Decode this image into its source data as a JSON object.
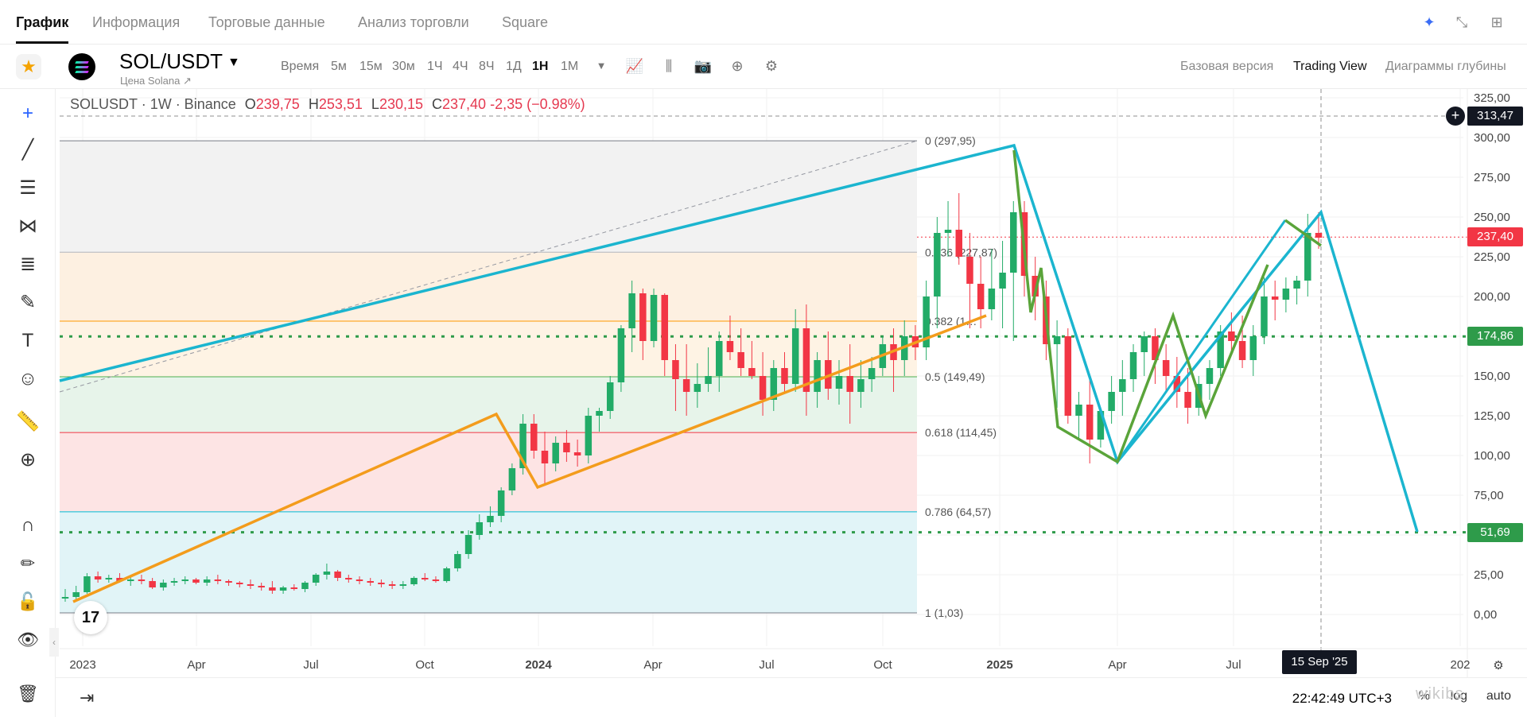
{
  "nav": {
    "tabs": [
      "График",
      "Информация",
      "Торговые данные",
      "Анализ торговли",
      "Square"
    ],
    "icons": [
      "ai-sparkle-icon",
      "minimize-icon",
      "grid-layout-icon"
    ]
  },
  "toolbar": {
    "pair": "SOL/USDT",
    "subtitle": "Цена Solana ↗",
    "time_label": "Время",
    "timeframes": [
      "5м",
      "15м",
      "30м",
      "1Ч",
      "4Ч",
      "8Ч",
      "1Д",
      "1Н",
      "1М"
    ],
    "active_timeframe": "1Н",
    "view_modes": [
      "Базовая версия",
      "Trading View",
      "Диаграммы глубины"
    ],
    "active_view": "Trading View"
  },
  "legend": {
    "symbol": "SOLUSDT · 1W · Binance",
    "o_label": "O",
    "o": "239,75",
    "h_label": "H",
    "h": "253,51",
    "l_label": "L",
    "l": "230,15",
    "c_label": "C",
    "c": "237,40",
    "change": "-2,35 (−0.98%)"
  },
  "fib": {
    "levels": [
      {
        "label": "0 (297,95)",
        "price": 297.95,
        "color": "#787b86"
      },
      {
        "label": "0.236 (227,87)",
        "price": 227.87,
        "color": "#b2b5be"
      },
      {
        "label": "0.382 (1…",
        "price": 184.5,
        "color": "#ff9800"
      },
      {
        "label": "0.5 (149,49)",
        "price": 149.49,
        "color": "#4caf50"
      },
      {
        "label": "0.618 (114,45)",
        "price": 114.45,
        "color": "#f23645"
      },
      {
        "label": "0.786 (64,57)",
        "price": 64.57,
        "color": "#00bcd4"
      },
      {
        "label": "1 (1,03)",
        "price": 1.03,
        "color": "#787b86"
      }
    ]
  },
  "price_axis": {
    "ticks": [
      "325,00",
      "300,00",
      "275,00",
      "250,00",
      "225,00",
      "200,00",
      "175,00",
      "150,00",
      "125,00",
      "100,00",
      "75,00",
      "50,00",
      "25,00",
      "0,00"
    ],
    "crosshair_price": "313,47",
    "current_price": "237,40",
    "level_174": "174,86",
    "level_51": "51,69"
  },
  "time_axis": {
    "ticks": [
      "2023",
      "Apr",
      "Jul",
      "Oct",
      "2024",
      "Apr",
      "Jul",
      "Oct",
      "2025",
      "Apr",
      "Jul",
      "202"
    ],
    "crosshair_date": "15 Sep '25"
  },
  "bottom": {
    "clock": "22:42:49 UTC+3",
    "percent": "%",
    "log": "log",
    "auto": "auto"
  },
  "colors": {
    "up": "#26a69a",
    "up_bright": "#22ab67",
    "down": "#f23645",
    "cyan_line": "#1bb5cf",
    "orange_line": "#f39c1c",
    "green_line": "#5aa43a",
    "price_label_red": "#f23645",
    "price_label_green": "#2e9b4a"
  },
  "watermark": "wikibs"
}
